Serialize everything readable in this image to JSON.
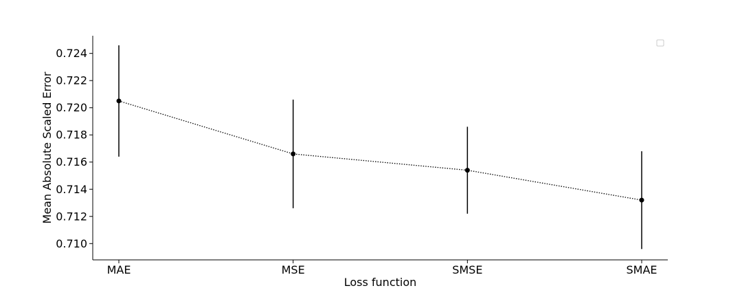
{
  "chart_data": {
    "type": "line",
    "title": "",
    "xlabel": "Loss function",
    "ylabel": "Mean Absolute Scaled Error",
    "categories": [
      "MAE",
      "MSE",
      "SMSE",
      "SMAE"
    ],
    "series": [
      {
        "values": [
          0.7205,
          0.7166,
          0.7154,
          0.7132
        ],
        "error": [
          0.0041,
          0.004,
          0.0032,
          0.0036
        ],
        "line_style": "dotted",
        "color": "#000000"
      }
    ],
    "ylim": [
      0.7088,
      0.7253
    ],
    "yticks": [
      0.71,
      0.712,
      0.714,
      0.716,
      0.718,
      0.72,
      0.722,
      0.724
    ],
    "ytick_labels": [
      "0.710",
      "0.712",
      "0.714",
      "0.716",
      "0.718",
      "0.720",
      "0.722",
      "0.724"
    ],
    "grid": false,
    "legend": {
      "placement": "top-right",
      "entries": []
    }
  }
}
